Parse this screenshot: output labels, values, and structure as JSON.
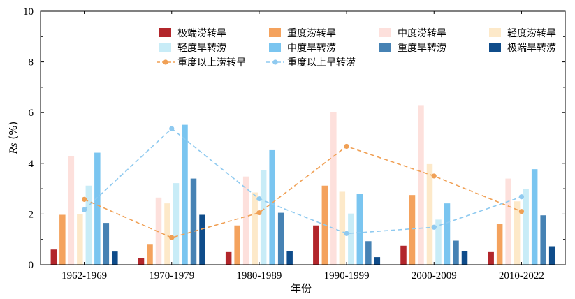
{
  "chart_data": {
    "type": "bar",
    "xlabel": "年份",
    "ylabel_italic": "Rs",
    "ylabel_unit": "(%)",
    "ylim": [
      0,
      10
    ],
    "yticks": [
      "0",
      "2",
      "4",
      "6",
      "8",
      "10"
    ],
    "categories": [
      "1962-1969",
      "1970-1979",
      "1980-1989",
      "1990-1999",
      "2000-2009",
      "2010-2022"
    ],
    "series": [
      {
        "name": "极端涝转旱",
        "color": "#b2262b",
        "values": [
          0.6,
          0.25,
          0.5,
          1.55,
          0.75,
          0.5
        ]
      },
      {
        "name": "重度涝转旱",
        "color": "#f4a25d",
        "values": [
          1.97,
          0.82,
          1.55,
          3.12,
          2.75,
          1.62
        ]
      },
      {
        "name": "中度涝转旱",
        "color": "#fde0dc",
        "values": [
          4.28,
          2.65,
          3.48,
          6.02,
          6.27,
          3.4
        ]
      },
      {
        "name": "轻度涝转旱",
        "color": "#fde9c9",
        "values": [
          2.0,
          2.42,
          2.85,
          2.88,
          3.97,
          2.5
        ]
      },
      {
        "name": "轻度旱转涝",
        "color": "#c8ecf7",
        "values": [
          3.12,
          3.22,
          3.72,
          2.02,
          1.78,
          3.0
        ]
      },
      {
        "name": "中度旱转涝",
        "color": "#7ac5f0",
        "values": [
          4.42,
          5.52,
          4.52,
          2.8,
          2.42,
          3.77
        ]
      },
      {
        "name": "重度旱转涝",
        "color": "#4682b4",
        "values": [
          1.65,
          3.4,
          2.05,
          0.93,
          0.95,
          1.95
        ]
      },
      {
        "name": "极端旱转涝",
        "color": "#0f4c8a",
        "values": [
          0.52,
          1.97,
          0.55,
          0.3,
          0.53,
          0.73
        ]
      }
    ],
    "lines": [
      {
        "name": "重度以上涝转旱",
        "color": "#f0a055",
        "values": [
          2.58,
          1.07,
          2.05,
          4.67,
          3.5,
          2.1
        ]
      },
      {
        "name": "重度以上旱转涝",
        "color": "#8fcaf0",
        "values": [
          2.17,
          5.37,
          2.6,
          1.23,
          1.48,
          2.68
        ]
      }
    ],
    "legend_position": "top"
  }
}
